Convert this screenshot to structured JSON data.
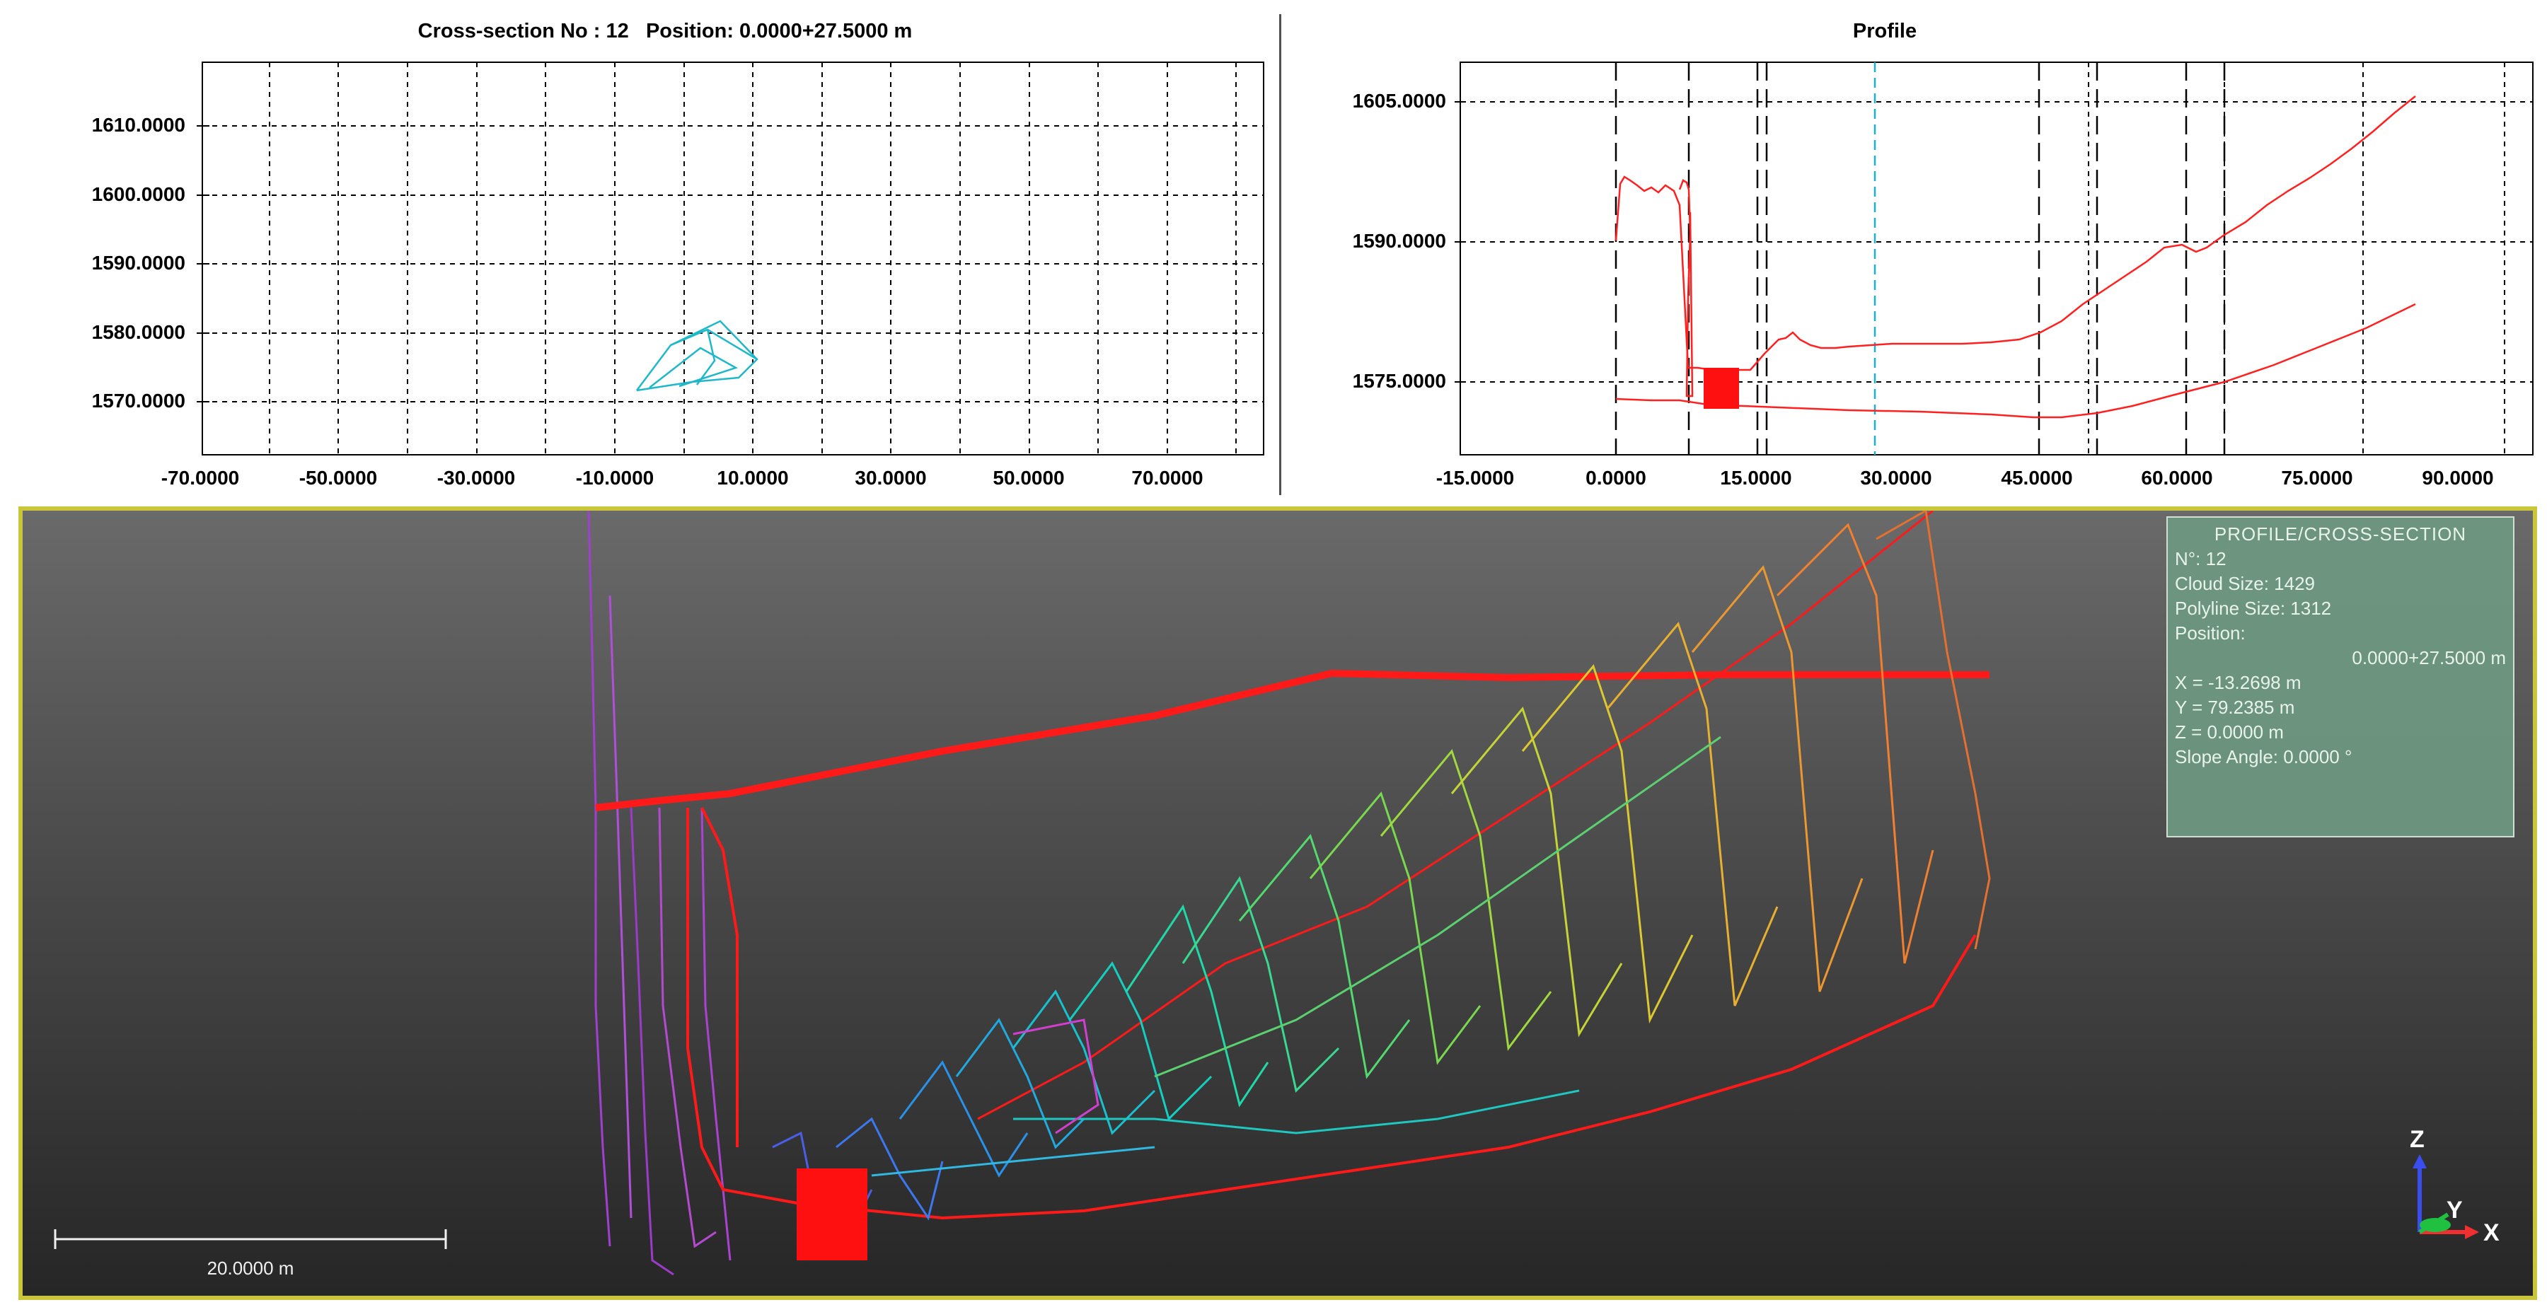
{
  "cross_section": {
    "title": "Cross-section No : 12   Position: 0.0000+27.5000 m",
    "y_ticks": [
      "1610.0000",
      "1600.0000",
      "1590.0000",
      "1580.0000",
      "1570.0000"
    ],
    "x_ticks": [
      "-70.0000",
      "-50.0000",
      "-30.0000",
      "-10.0000",
      "10.0000",
      "30.0000",
      "50.0000",
      "70.0000"
    ],
    "grid": true,
    "color": "#1fb8c8"
  },
  "profile": {
    "title": "Profile",
    "y_ticks": [
      "1605.0000",
      "1590.0000",
      "1575.0000"
    ],
    "x_ticks": [
      "-15.0000",
      "0.0000",
      "15.0000",
      "30.0000",
      "45.0000",
      "60.0000",
      "75.0000",
      "90.0000"
    ],
    "grid": true,
    "line_color": "#ff2020",
    "marker_color": "#19b0d0"
  },
  "view3d": {
    "info": {
      "header": "PROFILE/CROSS-SECTION",
      "number": "N°: 12",
      "cloud_size": "Cloud Size: 1429",
      "polyline_size": "Polyline Size: 1312",
      "position_label": "Position:",
      "position_value": "0.0000+27.5000 m",
      "x": "X = -13.2698 m",
      "y": "Y = 79.2385 m",
      "z": "Z = 0.0000 m",
      "slope": "Slope Angle: 0.0000 °"
    },
    "scale_label": "20.0000 m",
    "axes": {
      "z": "Z",
      "y": "Y",
      "x": "X"
    },
    "background": "#4a4a4a",
    "border_color": "#c9c63c"
  }
}
